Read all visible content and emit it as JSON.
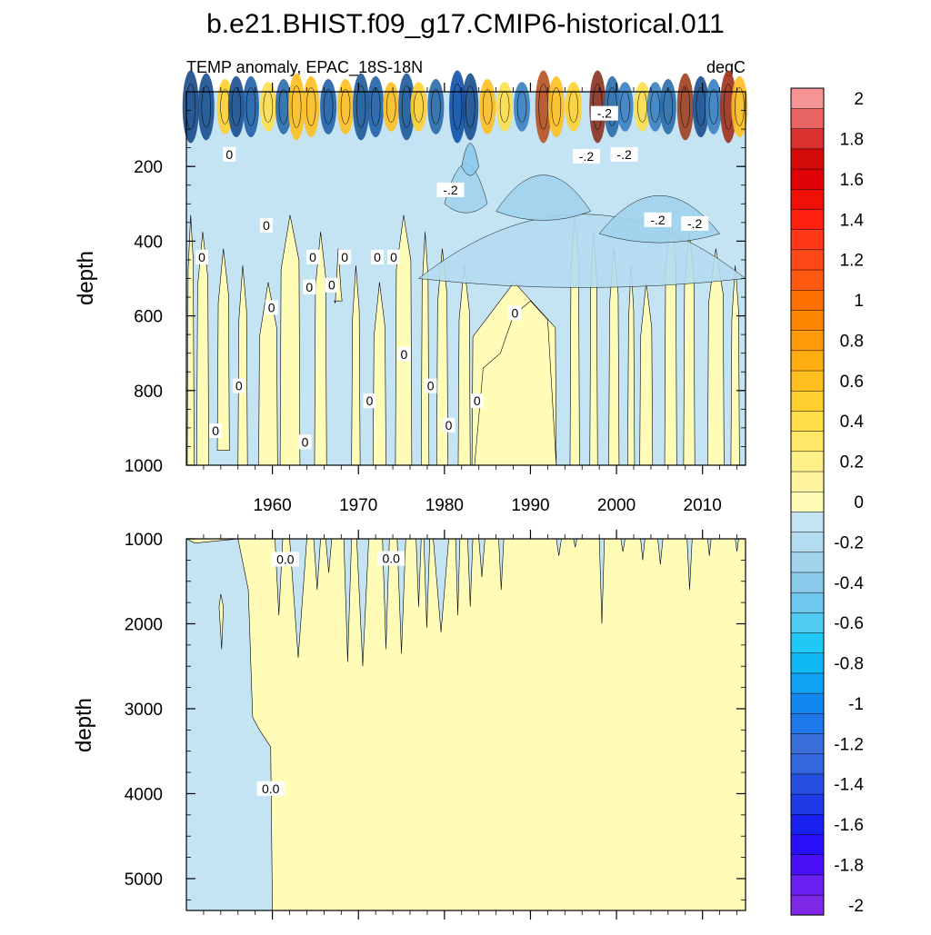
{
  "chart_data": [
    {
      "type": "heatmap",
      "title": "b.e21.BHIST.f09_g17.CMIP6-historical.011",
      "subtitle_left": "TEMP anomaly, EPAC_18S-18N",
      "subtitle_right": "degC",
      "ylabel": "depth",
      "xlim": [
        1950,
        2015
      ],
      "ylim": [
        0,
        1000
      ],
      "y_reversed": true,
      "x_ticks": [
        1960,
        1970,
        1980,
        1990,
        2000,
        2010
      ],
      "x_tick_labels": [
        "1960",
        "1970",
        "1980",
        "1990",
        "2000",
        "2010"
      ],
      "y_ticks": [
        200,
        400,
        600,
        800,
        1000
      ],
      "y_tick_labels": [
        "200",
        "400",
        "600",
        "800",
        "1000"
      ],
      "contour_labels": [
        {
          "text": "0",
          "x": 1955.0,
          "y": 170
        },
        {
          "text": "0",
          "x": 1959.3,
          "y": 360
        },
        {
          "text": "0",
          "x": 1951.8,
          "y": 445
        },
        {
          "text": "0",
          "x": 1964.7,
          "y": 445
        },
        {
          "text": "0",
          "x": 1968.4,
          "y": 445
        },
        {
          "text": "0",
          "x": 1972.2,
          "y": 445
        },
        {
          "text": "0",
          "x": 1974.1,
          "y": 445
        },
        {
          "text": "0",
          "x": 1964.3,
          "y": 525
        },
        {
          "text": "0",
          "x": 1966.9,
          "y": 520
        },
        {
          "text": "0",
          "x": 1959.9,
          "y": 580
        },
        {
          "text": "0",
          "x": 1988.2,
          "y": 595
        },
        {
          "text": "0",
          "x": 1975.3,
          "y": 705
        },
        {
          "text": "0",
          "x": 1956.1,
          "y": 790
        },
        {
          "text": "0",
          "x": 1978.4,
          "y": 790
        },
        {
          "text": "0",
          "x": 1971.3,
          "y": 830
        },
        {
          "text": "0",
          "x": 1983.8,
          "y": 830
        },
        {
          "text": "0",
          "x": 1953.4,
          "y": 910
        },
        {
          "text": "0",
          "x": 1980.5,
          "y": 895
        },
        {
          "text": "0",
          "x": 1963.8,
          "y": 940
        },
        {
          "text": "-.2",
          "x": 1998.6,
          "y": 60
        },
        {
          "text": "-.2",
          "x": 1996.5,
          "y": 175
        },
        {
          "text": "-.2",
          "x": 2000.9,
          "y": 170
        },
        {
          "text": "-.2",
          "x": 1980.7,
          "y": 265
        },
        {
          "text": "-.2",
          "x": 2004.8,
          "y": 345
        },
        {
          "text": "-.2",
          "x": 2009.1,
          "y": 355
        }
      ]
    },
    {
      "type": "heatmap",
      "ylabel": "depth",
      "xlim": [
        1950,
        2015
      ],
      "ylim": [
        1000,
        5375
      ],
      "y_reversed": true,
      "y_ticks": [
        1000,
        2000,
        3000,
        4000,
        5000
      ],
      "y_tick_labels": [
        "1000",
        "2000",
        "3000",
        "4000",
        "5000"
      ],
      "contour_labels": [
        {
          "text": "0.0",
          "x": 1961.5,
          "y": 1250
        },
        {
          "text": "0.0",
          "x": 1973.8,
          "y": 1240
        },
        {
          "text": "0.0",
          "x": 1959.8,
          "y": 3950
        }
      ]
    }
  ],
  "colorbar": {
    "levels": [
      -2.0,
      -1.9,
      -1.8,
      -1.7,
      -1.6,
      -1.5,
      -1.4,
      -1.3,
      -1.2,
      -1.1,
      -1.0,
      -0.9,
      -0.8,
      -0.7,
      -0.6,
      -0.5,
      -0.4,
      -0.3,
      -0.2,
      -0.1,
      0.0,
      0.1,
      0.2,
      0.3,
      0.4,
      0.5,
      0.6,
      0.7,
      0.8,
      0.9,
      1.0,
      1.1,
      1.2,
      1.3,
      1.4,
      1.5,
      1.6,
      1.7,
      1.8,
      1.9,
      2.0
    ],
    "tick_labels": [
      "-2",
      "-1.8",
      "-1.6",
      "-1.4",
      "-1.2",
      "-1",
      "-0.8",
      "-0.6",
      "-0.4",
      "-0.2",
      "0",
      "0.2",
      "0.4",
      "0.6",
      "0.8",
      "1",
      "1.2",
      "1.4",
      "1.6",
      "1.8",
      "2"
    ],
    "colors_bottom_to_top": [
      "#8028e8",
      "#6a20f0",
      "#4a10f8",
      "#2a10f8",
      "#1a20f0",
      "#1e3ae6",
      "#2850e0",
      "#3466de",
      "#3a6ed8",
      "#1e78ea",
      "#1088f0",
      "#10a0f4",
      "#10b8f4",
      "#20c8f6",
      "#50ccf2",
      "#70c8ee",
      "#8ccaec",
      "#a2d4ee",
      "#b4dcf0",
      "#c4e4f4",
      "#fffcb8",
      "#fff5a0",
      "#fff08a",
      "#ffe868",
      "#ffde4a",
      "#ffd030",
      "#ffbf20",
      "#ffae10",
      "#ff9a08",
      "#ff8600",
      "#ff7000",
      "#ff5810",
      "#ff4818",
      "#ff3818",
      "#ff2010",
      "#f01008",
      "#e00008",
      "#d20a0a",
      "#da3030",
      "#e86464",
      "#f49494"
    ]
  }
}
